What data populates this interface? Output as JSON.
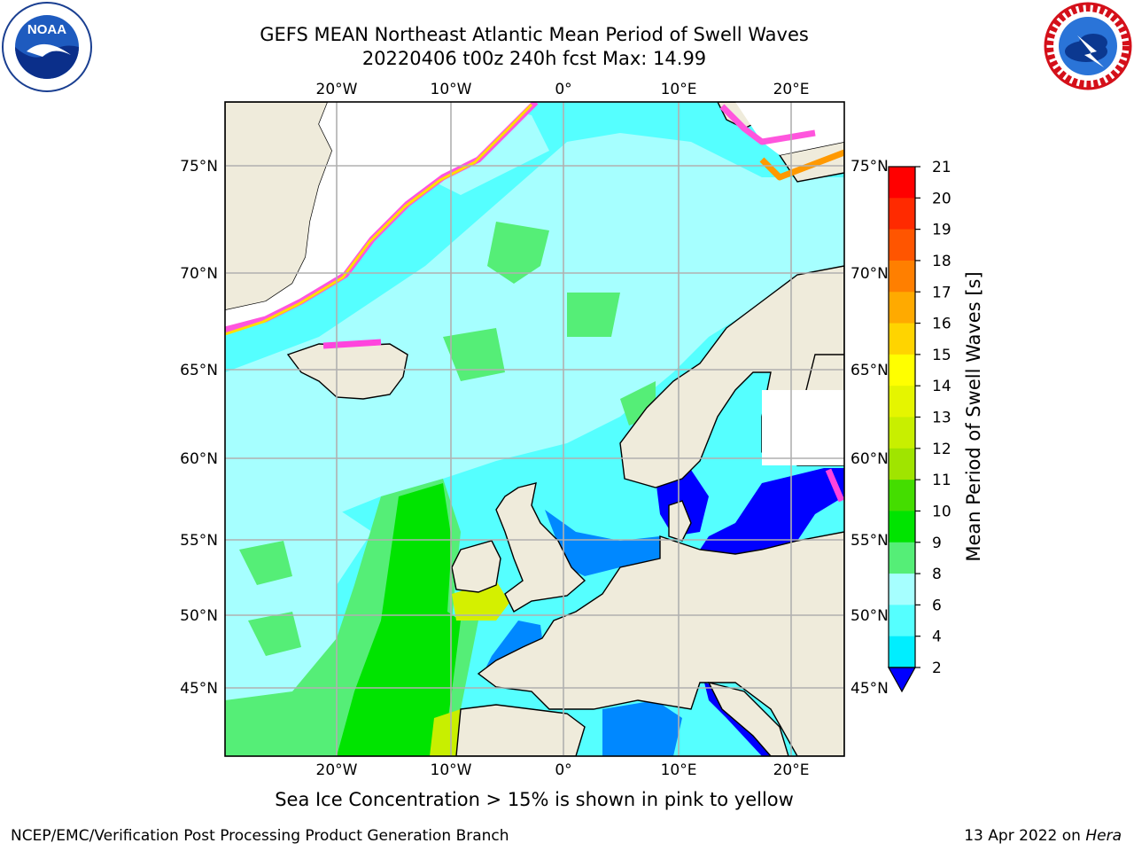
{
  "header": {
    "title_line1": "GEFS MEAN Northeast Atlantic Mean Period of Swell Waves",
    "title_line2": "20220406 t00z 240h fcst   Max: 14.99"
  },
  "logos": {
    "left": {
      "name": "noaa-logo",
      "text": "NOAA",
      "ring_text": "NATIONAL OCEANIC AND ATMOSPHERIC ADMINISTRATION · U.S. DEPARTMENT OF COMMERCE"
    },
    "right": {
      "name": "nws-logo",
      "ring_text": "NATIONAL WEATHER SERVICE"
    }
  },
  "map": {
    "projection": "polar stereographic",
    "lon_labels_top": [
      "20°W",
      "10°W",
      "0°",
      "10°E",
      "20°E"
    ],
    "lon_labels_bottom": [
      "20°W",
      "10°W",
      "0°",
      "10°E",
      "20°E"
    ],
    "lat_labels_left": [
      "75°N",
      "70°N",
      "65°N",
      "60°N",
      "55°N",
      "50°N",
      "45°N"
    ],
    "lat_labels_right": [
      "75°N",
      "70°N",
      "65°N",
      "60°N",
      "55°N",
      "50°N",
      "45°N"
    ],
    "colors": {
      "land": "#efebdb",
      "ice_free_white": "#ffffff",
      "grid": "#b0b0b0"
    }
  },
  "colorbar": {
    "label": "Mean Period of Swell Waves [s]",
    "ticks": [
      "21",
      "20",
      "19",
      "18",
      "17",
      "16",
      "15",
      "14",
      "13",
      "12",
      "11",
      "10",
      "9",
      "8",
      "6",
      "4",
      "2"
    ],
    "colors": [
      "#ff0000",
      "#ff2a00",
      "#ff5500",
      "#ff7f00",
      "#ffaa00",
      "#ffd400",
      "#ffff00",
      "#e5f500",
      "#c8ef00",
      "#a0e400",
      "#44dd00",
      "#00e400",
      "#55ee77",
      "#a6ffff",
      "#55ffff",
      "#00eeff",
      "#0088ff",
      "#0000ff"
    ],
    "extend": "min"
  },
  "footnote": "Sea Ice Concentration > 15% is shown in pink to yellow",
  "footer": {
    "credit": "NCEP/EMC/Verification Post Processing Product Generation Branch",
    "date_prefix": "13 Apr 2022 on ",
    "machine": "Hera"
  }
}
